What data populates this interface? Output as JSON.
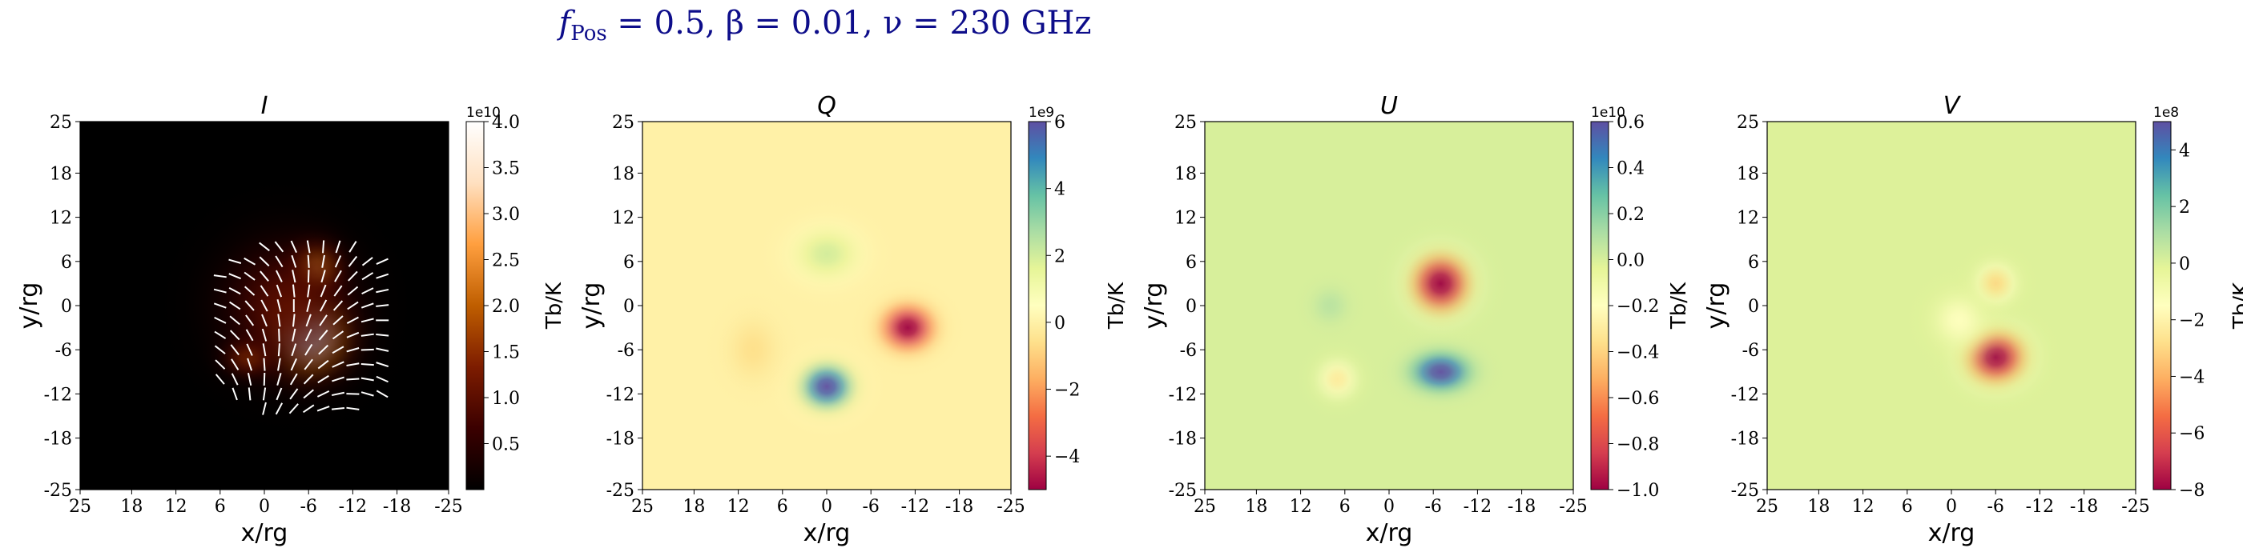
{
  "figure": {
    "title_parts": {
      "f": "f",
      "sub": "Pos",
      "rest": " = 0.5, β = 0.01, ν = 230 GHz"
    }
  },
  "chart_data": [
    {
      "type": "heatmap",
      "title": "I",
      "xlabel": "x/rg",
      "ylabel": "y/rg",
      "xticks": [
        "25",
        "18",
        "12",
        "6",
        "0",
        "-6",
        "-12",
        "-18",
        "-25"
      ],
      "yticks": [
        "25",
        "18",
        "12",
        "6",
        "0",
        "-6",
        "-12",
        "-18",
        "-25"
      ],
      "xlim": [
        25,
        -25
      ],
      "ylim": [
        -25,
        25
      ],
      "colormap": "afmhot",
      "colorbar": {
        "label": "Tb/K",
        "exponent": "1e10",
        "range": [
          0,
          4.0
        ],
        "ticks": [
          0.5,
          1.0,
          1.5,
          2.0,
          2.5,
          3.0,
          3.5,
          4.0
        ],
        "tick_labels": [
          "0.5",
          "1.0",
          "1.5",
          "2.0",
          "2.5",
          "3.0",
          "3.5",
          "4.0"
        ]
      },
      "polarization_ticks": true,
      "blobs": [
        {
          "x": -6,
          "y": -4,
          "amp": 4.0,
          "sx": 6,
          "sy": 6
        },
        {
          "x": -7,
          "y": 5,
          "amp": 2.4,
          "sx": 4,
          "sy": 4
        },
        {
          "x": 2,
          "y": -7,
          "amp": 1.6,
          "sx": 4,
          "sy": 3
        },
        {
          "x": -3,
          "y": 0,
          "amp": 1.0,
          "sx": 10,
          "sy": 10
        }
      ]
    },
    {
      "type": "heatmap",
      "title": "Q",
      "xlabel": "x/rg",
      "ylabel": "y/rg",
      "xticks": [
        "25",
        "18",
        "12",
        "6",
        "0",
        "-6",
        "-12",
        "-18",
        "-25"
      ],
      "yticks": [
        "25",
        "18",
        "12",
        "6",
        "0",
        "-6",
        "-12",
        "-18",
        "-25"
      ],
      "xlim": [
        25,
        -25
      ],
      "ylim": [
        -25,
        25
      ],
      "colormap": "Spectral",
      "colorbar": {
        "label": "Tb/K",
        "exponent": "1e9",
        "range": [
          -5,
          6
        ],
        "ticks": [
          -4,
          -2,
          0,
          2,
          4,
          6
        ],
        "tick_labels": [
          "−4",
          "−2",
          "0",
          "2",
          "4",
          "6"
        ]
      },
      "blobs": [
        {
          "x": 0,
          "y": -11,
          "amp": 6,
          "sx": 4,
          "sy": 3.5
        },
        {
          "x": 0,
          "y": 7,
          "amp": 2,
          "sx": 5,
          "sy": 4
        },
        {
          "x": -11,
          "y": -3,
          "amp": -5,
          "sx": 4,
          "sy": 3.5
        },
        {
          "x": 10,
          "y": -6,
          "amp": -0.6,
          "sx": 4,
          "sy": 5
        }
      ]
    },
    {
      "type": "heatmap",
      "title": "U",
      "xlabel": "x/rg",
      "ylabel": "y/rg",
      "xticks": [
        "25",
        "18",
        "12",
        "6",
        "0",
        "-6",
        "-12",
        "-18",
        "-25"
      ],
      "yticks": [
        "25",
        "18",
        "12",
        "6",
        "0",
        "-6",
        "-12",
        "-18",
        "-25"
      ],
      "xlim": [
        25,
        -25
      ],
      "ylim": [
        -25,
        25
      ],
      "colormap": "Spectral",
      "colorbar": {
        "label": "Tb/K",
        "exponent": "1e10",
        "range": [
          -1.0,
          0.6
        ],
        "ticks": [
          -1.0,
          -0.8,
          -0.6,
          -0.4,
          -0.2,
          0.0,
          0.2,
          0.4,
          0.6
        ],
        "tick_labels": [
          "−1.0",
          "−0.8",
          "−0.6",
          "−0.4",
          "−0.2",
          "0.0",
          "0.2",
          "0.4",
          "0.6"
        ]
      },
      "blobs": [
        {
          "x": -7,
          "y": 3,
          "amp": -1.0,
          "sx": 4.5,
          "sy": 4.5
        },
        {
          "x": -7,
          "y": -9,
          "amp": 0.6,
          "sx": 4.5,
          "sy": 3
        },
        {
          "x": 7,
          "y": -10,
          "amp": -0.3,
          "sx": 3,
          "sy": 3
        },
        {
          "x": 8,
          "y": 0,
          "amp": 0.08,
          "sx": 3,
          "sy": 3
        }
      ]
    },
    {
      "type": "heatmap",
      "title": "V",
      "xlabel": "x/rg",
      "ylabel": "y/rg",
      "xticks": [
        "25",
        "18",
        "12",
        "6",
        "0",
        "-6",
        "-12",
        "-18",
        "-25"
      ],
      "yticks": [
        "25",
        "18",
        "12",
        "6",
        "0",
        "-6",
        "-12",
        "-18",
        "-25"
      ],
      "xlim": [
        25,
        -25
      ],
      "ylim": [
        -25,
        25
      ],
      "colormap": "Spectral",
      "colorbar": {
        "label": "Tb/K",
        "exponent": "1e8",
        "range": [
          -8,
          5
        ],
        "ticks": [
          -8,
          -6,
          -4,
          -2,
          0,
          2,
          4
        ],
        "tick_labels": [
          "−8",
          "−6",
          "−4",
          "−2",
          "0",
          "2",
          "4"
        ]
      },
      "blobs": [
        {
          "x": -6,
          "y": -7,
          "amp": -8,
          "sx": 4.5,
          "sy": 4
        },
        {
          "x": -6,
          "y": 3,
          "amp": -3,
          "sx": 3,
          "sy": 3
        },
        {
          "x": -1,
          "y": -2,
          "amp": -1.5,
          "sx": 4,
          "sy": 4
        }
      ]
    }
  ]
}
